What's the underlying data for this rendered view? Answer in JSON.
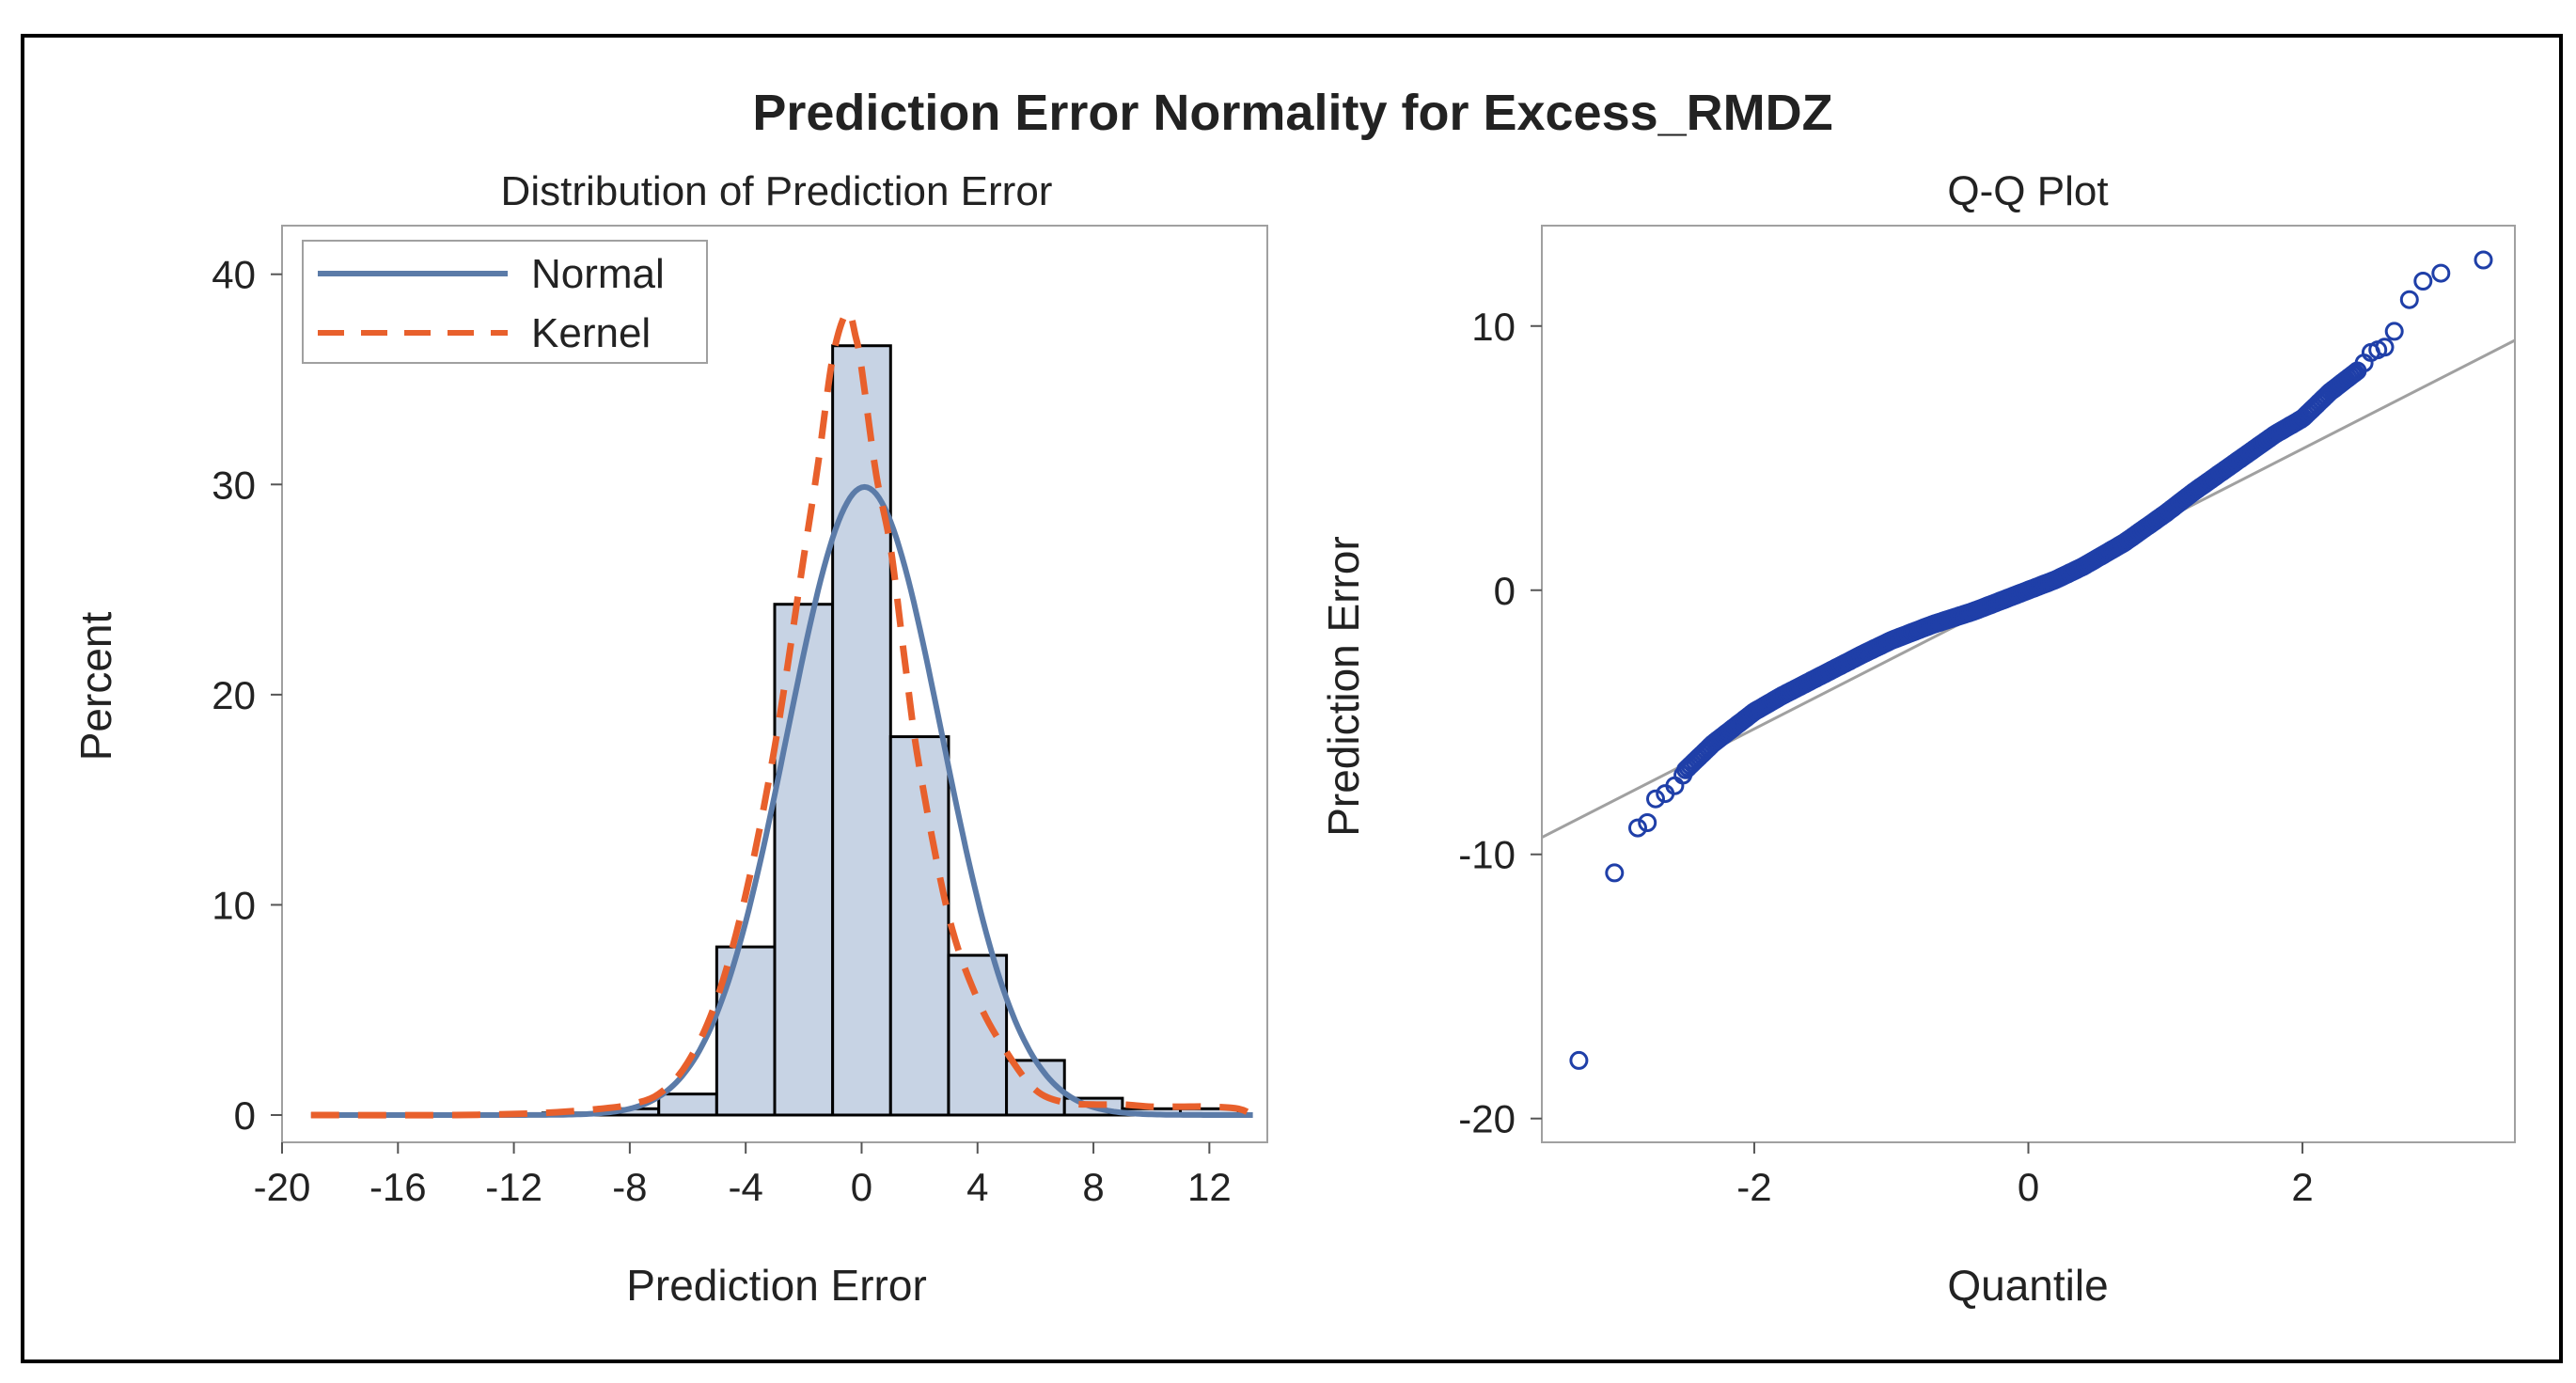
{
  "title": "Prediction Error Normality for Excess_RMDZ",
  "chart_data": [
    {
      "type": "histogram",
      "title": "Distribution of Prediction Error",
      "xlabel": "Prediction Error",
      "ylabel": "Percent",
      "xlim": [
        -20,
        14
      ],
      "ylim": [
        0,
        42
      ],
      "xticks": [
        -20,
        -16,
        -12,
        -8,
        -4,
        0,
        4,
        8,
        12
      ],
      "yticks": [
        0,
        10,
        20,
        30,
        40
      ],
      "bin_width": 2,
      "bin_centers": [
        -10,
        -8,
        -6,
        -4,
        -2,
        0,
        2,
        4,
        6,
        8,
        10,
        12
      ],
      "values": [
        0.1,
        0.3,
        1.0,
        8.0,
        24.3,
        36.6,
        18.0,
        7.6,
        2.6,
        0.8,
        0.3,
        0.3
      ],
      "legend": [
        {
          "name": "Normal",
          "style": "solid",
          "color": "#5b7ba8"
        },
        {
          "name": "Kernel",
          "style": "dashed",
          "color": "#e8602c"
        }
      ],
      "legend_position": "top-left",
      "normal_curve": {
        "mean": 0.1,
        "sd": 2.67
      },
      "kernel_curve": {
        "x": [
          -19,
          -14,
          -11,
          -9,
          -8,
          -7,
          -6,
          -5,
          -4,
          -3,
          -2,
          -1.5,
          -1,
          -0.5,
          -0.2,
          0,
          0.5,
          1,
          1.5,
          2,
          3,
          4,
          5,
          6,
          7,
          8,
          9,
          10,
          11,
          12,
          13,
          13.5
        ],
        "y": [
          0,
          0,
          0.1,
          0.3,
          0.5,
          1.0,
          2.5,
          5.5,
          10.5,
          17.5,
          26.5,
          31.0,
          36.0,
          38.2,
          37.0,
          35.5,
          30.5,
          27.0,
          21.5,
          16.5,
          9.5,
          5.5,
          3.0,
          1.2,
          0.6,
          0.5,
          0.5,
          0.4,
          0.4,
          0.4,
          0.3,
          0
        ]
      },
      "colors": {
        "bar_fill": "#c7d3e4",
        "bar_edge": "#000000"
      }
    },
    {
      "type": "scatter",
      "title": "Q-Q Plot",
      "xlabel": "Quantile",
      "ylabel": "Prediction Error",
      "xlim": [
        -3.55,
        3.55
      ],
      "ylim": [
        -20.9,
        13.8
      ],
      "xticks": [
        -2,
        0,
        2
      ],
      "yticks": [
        -20,
        -10,
        0,
        10
      ],
      "reference_line": {
        "intercept": 0.05,
        "slope": 2.65,
        "color": "#a0a0a0"
      },
      "marker_color": "#1f3fa8",
      "outliers": [
        {
          "x": -3.28,
          "y": -17.8
        },
        {
          "x": -3.02,
          "y": -10.7
        },
        {
          "x": -2.85,
          "y": -9.0
        },
        {
          "x": -2.78,
          "y": -8.8
        },
        {
          "x": -2.72,
          "y": -7.9
        },
        {
          "x": -2.65,
          "y": -7.7
        },
        {
          "x": -2.58,
          "y": -7.4
        },
        {
          "x": -2.52,
          "y": -7.0
        },
        {
          "x": 2.45,
          "y": 8.6
        },
        {
          "x": 2.5,
          "y": 9.0
        },
        {
          "x": 2.55,
          "y": 9.1
        },
        {
          "x": 2.6,
          "y": 9.2
        },
        {
          "x": 2.67,
          "y": 9.8
        },
        {
          "x": 2.78,
          "y": 11.0
        },
        {
          "x": 2.88,
          "y": 11.7
        },
        {
          "x": 3.01,
          "y": 12.0
        },
        {
          "x": 3.32,
          "y": 12.5
        }
      ],
      "body_path": {
        "x": [
          -2.5,
          -2.3,
          -2.1,
          -2.0,
          -1.8,
          -1.5,
          -1.2,
          -1.0,
          -0.7,
          -0.4,
          -0.2,
          0.0,
          0.2,
          0.4,
          0.7,
          1.0,
          1.2,
          1.5,
          1.8,
          2.0,
          2.1,
          2.2,
          2.3,
          2.4
        ],
        "y": [
          -6.8,
          -5.8,
          -5.0,
          -4.6,
          -4.0,
          -3.2,
          -2.4,
          -1.9,
          -1.3,
          -0.8,
          -0.4,
          0.0,
          0.4,
          0.9,
          1.8,
          2.9,
          3.7,
          4.8,
          5.9,
          6.5,
          7.0,
          7.5,
          7.9,
          8.3
        ]
      },
      "body_point_count": 300
    }
  ]
}
